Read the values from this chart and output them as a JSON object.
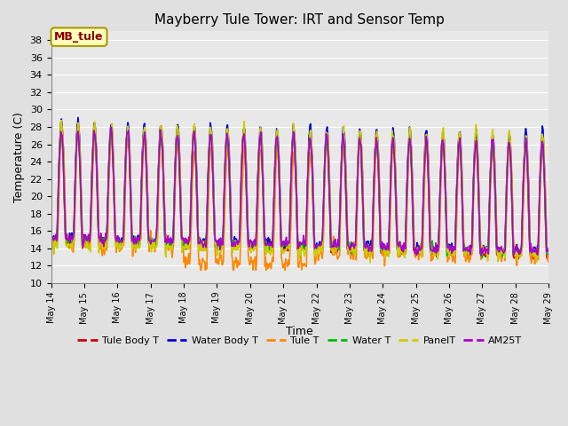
{
  "title": "Mayberry Tule Tower: IRT and Sensor Temp",
  "xlabel": "Time",
  "ylabel": "Temperature (C)",
  "ylim": [
    10,
    39
  ],
  "yticks": [
    10,
    12,
    14,
    16,
    18,
    20,
    22,
    24,
    26,
    28,
    30,
    32,
    34,
    36,
    38
  ],
  "background_color": "#e0e0e0",
  "plot_background": "#e8e8e8",
  "grid_color": "white",
  "annotation_text": "MB_tule",
  "annotation_bg": "#ffffbb",
  "annotation_border": "#aa9900",
  "series": {
    "Tule Body T": {
      "color": "#cc0000",
      "lw": 1.2
    },
    "Water Body T": {
      "color": "#0000dd",
      "lw": 1.2
    },
    "Tule T": {
      "color": "#ff8800",
      "lw": 1.2
    },
    "Water T": {
      "color": "#00bb00",
      "lw": 1.2
    },
    "PanelT": {
      "color": "#cccc00",
      "lw": 1.2
    },
    "AM25T": {
      "color": "#aa00cc",
      "lw": 1.2
    }
  },
  "x_start": 14,
  "x_end": 29,
  "xtick_labels": [
    "May 14",
    "May 15",
    "May 16",
    "May 17",
    "May 18",
    "May 19",
    "May 20",
    "May 21",
    "May 22",
    "May 23",
    "May 24",
    "May 25",
    "May 26",
    "May 27",
    "May 28",
    "May 29"
  ],
  "xtick_positions": [
    14,
    15,
    16,
    17,
    18,
    19,
    20,
    21,
    22,
    23,
    24,
    25,
    26,
    27,
    28,
    29
  ]
}
